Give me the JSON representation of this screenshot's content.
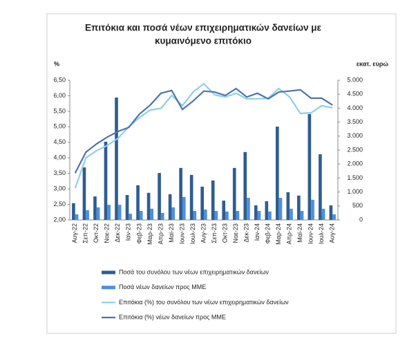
{
  "chart_data": {
    "type": "combo",
    "title": [
      "Επιτόκια και ποσά νέων επιχειρηματικών δανείων με",
      "κυμαινόμενο επιτόκιο"
    ],
    "y_label": "%",
    "y2_label": "εκατ. ευρώ",
    "categories": [
      "Αυγ-22",
      "Σεπ-22",
      "Οκτ-22",
      "Νοε-22",
      "Δεκ-22",
      "Ιαν-23",
      "Φεβ-23",
      "Μαρ-23",
      "Απρ-23",
      "Μαϊ-23",
      "Ιουν-23",
      "Ιουλ-23",
      "Αυγ-23",
      "Σεπ-23",
      "Οκτ-23",
      "Νοε-23",
      "Δεκ-23",
      "Ιαν-24",
      "Φεβ-24",
      "Μαρ-24",
      "Απρ-24",
      "Μαϊ-24",
      "Ιουν-24",
      "Ιουλ-24",
      "Αυγ-24"
    ],
    "ylim": [
      2.0,
      6.5
    ],
    "yticks": [
      {
        "value": 2.0,
        "label": "2,00"
      },
      {
        "value": 2.5,
        "label": "2,50"
      },
      {
        "value": 3.0,
        "label": "3,00"
      },
      {
        "value": 3.5,
        "label": "3,50"
      },
      {
        "value": 4.0,
        "label": "4,00"
      },
      {
        "value": 4.5,
        "label": "4,50"
      },
      {
        "value": 5.0,
        "label": "5,00"
      },
      {
        "value": 5.5,
        "label": "5,50"
      },
      {
        "value": 6.0,
        "label": "6,00"
      },
      {
        "value": 6.5,
        "label": "6,50"
      }
    ],
    "y2lim": [
      0,
      5000
    ],
    "y2ticks": [
      0,
      500,
      {
        "value": 1000,
        "label": "1.000"
      },
      {
        "value": 1500,
        "label": "1.500"
      },
      {
        "value": 2000,
        "label": "2.000"
      },
      {
        "value": 2500,
        "label": "2.500"
      },
      {
        "value": 3000,
        "label": "3.000"
      },
      {
        "value": 3500,
        "label": "3.500"
      },
      {
        "value": 4000,
        "label": "4.000"
      },
      {
        "value": 4500,
        "label": "4.500"
      },
      {
        "value": 5000,
        "label": "5.000"
      }
    ],
    "grid": false,
    "legend": "bottom",
    "series": [
      {
        "name": "Ποσά του συνόλου των νέων επιχειρηματικών δανείων",
        "type": "bar",
        "axis": "y2",
        "color": "#2f5d91",
        "values": [
          600,
          1880,
          840,
          2800,
          4380,
          890,
          1240,
          970,
          1680,
          920,
          1860,
          1610,
          1190,
          1410,
          690,
          1860,
          2430,
          520,
          670,
          3340,
          990,
          870,
          3790,
          2350,
          520
        ]
      },
      {
        "name": "Ποσά νέων δανείων προς ΜΜΕ",
        "type": "bar",
        "axis": "y2",
        "color": "#4f8fdc",
        "values": [
          200,
          350,
          450,
          540,
          540,
          220,
          320,
          400,
          250,
          450,
          820,
          320,
          370,
          320,
          300,
          320,
          790,
          320,
          300,
          790,
          400,
          320,
          720,
          400,
          200
        ]
      },
      {
        "name": "Επιτόκια (%) του συνόλου των νέων επιχειρηματικών δανείων",
        "type": "line",
        "axis": "y",
        "color": "#8ccfe8",
        "values": [
          3.02,
          4.0,
          4.23,
          4.4,
          4.63,
          5.0,
          5.3,
          5.54,
          5.59,
          6.01,
          5.68,
          6.12,
          6.39,
          6.03,
          5.96,
          6.08,
          5.9,
          5.9,
          5.92,
          6.23,
          5.96,
          5.43,
          5.45,
          5.68,
          5.61
        ]
      },
      {
        "name": "Επιτόκια (%) νέων δανείων προς ΜΜΕ",
        "type": "line",
        "axis": "y",
        "color": "#4a74ae",
        "values": [
          3.51,
          4.18,
          4.45,
          4.67,
          4.85,
          4.98,
          5.41,
          5.7,
          6.08,
          6.17,
          5.56,
          5.83,
          6.15,
          6.12,
          6.01,
          6.23,
          5.96,
          6.08,
          5.9,
          6.12,
          6.15,
          6.19,
          5.92,
          5.92,
          5.7
        ]
      }
    ]
  }
}
